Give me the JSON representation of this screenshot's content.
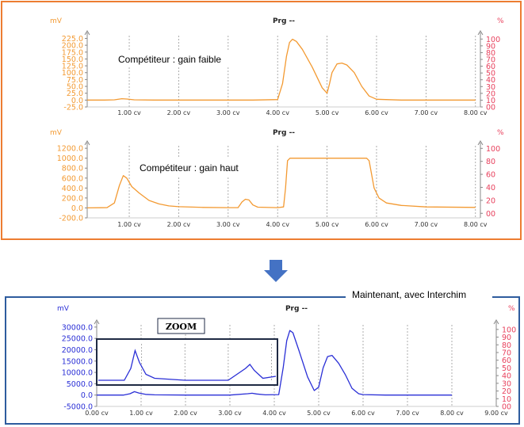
{
  "colors": {
    "orange": "#F39A32",
    "orange_frame": "#ED7D31",
    "blue": "#2A2FD6",
    "blue_frame": "#2E5C9E",
    "pct": "#E8415D",
    "grid": "#999999",
    "arrow": "#4472C4",
    "zoom_box": "#1F2A44"
  },
  "annotations": {
    "gain_low": "Compétiteur : gain faible",
    "gain_high": "Compétiteur : gain haut",
    "interchim": "Maintenant, avec Interchim",
    "zoom": "ZOOM"
  },
  "chart_data": [
    {
      "type": "line",
      "title": "Prg --",
      "ylabel": "mV",
      "y2label": "%",
      "x_unit": "cv",
      "xlim": [
        0.15,
        8.1
      ],
      "ylim": [
        -25,
        235
      ],
      "y2lim": [
        0,
        105
      ],
      "yticks": [
        "-25.0",
        "0.0",
        "25.0",
        "50.0",
        "75.0",
        "100.0",
        "125.0",
        "150.0",
        "175.0",
        "200.0",
        "225.0"
      ],
      "y2ticks": [
        "00",
        "10",
        "20",
        "30",
        "40",
        "50",
        "60",
        "70",
        "80",
        "90",
        "100"
      ],
      "xticks": [
        "1.00 cv",
        "2.00 cv",
        "3.00 cv",
        "4.00 cv",
        "5.00 cv",
        "6.00 cv",
        "7.00 cv",
        "8.00 cv"
      ],
      "series": [
        {
          "color": "orange",
          "x": [
            0.15,
            0.5,
            0.7,
            0.85,
            0.95,
            1.1,
            1.5,
            2.0,
            2.5,
            3.0,
            3.5,
            4.0,
            4.1,
            4.18,
            4.24,
            4.3,
            4.38,
            4.5,
            4.7,
            4.9,
            5.0,
            5.05,
            5.1,
            5.2,
            5.3,
            5.4,
            5.55,
            5.7,
            5.85,
            6.0,
            6.5,
            7.0,
            8.0
          ],
          "y": [
            0,
            0,
            1,
            5,
            4,
            1,
            0,
            0,
            0,
            0,
            0,
            2,
            60,
            160,
            210,
            222,
            214,
            185,
            120,
            45,
            25,
            60,
            100,
            132,
            135,
            128,
            100,
            50,
            15,
            3,
            0,
            0,
            0
          ]
        }
      ]
    },
    {
      "type": "line",
      "title": "Prg --",
      "ylabel": "mV",
      "y2label": "%",
      "x_unit": "cv",
      "xlim": [
        0.15,
        8.1
      ],
      "ylim": [
        -200,
        1250
      ],
      "y2lim": [
        -7,
        104
      ],
      "yticks": [
        "-200.0",
        "0.0",
        "200.0",
        "400.0",
        "600.0",
        "800.0",
        "1000.0",
        "1200.0"
      ],
      "y2ticks": [
        "00",
        "20",
        "40",
        "60",
        "80",
        "100"
      ],
      "xticks": [
        "1.00 cv",
        "2.00 cv",
        "3.00 cv",
        "4.00 cv",
        "5.00 cv",
        "6.00 cv",
        "7.00 cv",
        "8.00 cv"
      ],
      "series": [
        {
          "color": "orange",
          "x": [
            0.15,
            0.55,
            0.7,
            0.8,
            0.88,
            0.95,
            1.05,
            1.2,
            1.4,
            1.6,
            1.8,
            2.0,
            2.5,
            3.0,
            3.2,
            3.28,
            3.35,
            3.42,
            3.5,
            3.6,
            4.0,
            4.12,
            4.16,
            4.2,
            4.25,
            5.8,
            5.85,
            5.95,
            6.05,
            6.2,
            6.5,
            7.0,
            8.0
          ],
          "y": [
            0,
            5,
            100,
            450,
            650,
            600,
            430,
            300,
            150,
            80,
            40,
            25,
            10,
            5,
            5,
            120,
            175,
            160,
            60,
            15,
            5,
            20,
            400,
            950,
            1000,
            1000,
            950,
            400,
            200,
            100,
            50,
            20,
            10
          ]
        }
      ]
    },
    {
      "type": "line",
      "title": "Prg --",
      "ylabel": "mV",
      "y2label": "%",
      "x_unit": "cv",
      "xlim": [
        0,
        9
      ],
      "ylim": [
        -5000,
        31000
      ],
      "y2lim": [
        0,
        106
      ],
      "yticks": [
        "-5000.0",
        "0.0",
        "5000.0",
        "10000.0",
        "15000.0",
        "20000.0",
        "25000.0",
        "30000.0"
      ],
      "y2ticks": [
        "00",
        "10",
        "20",
        "30",
        "40",
        "50",
        "60",
        "70",
        "80",
        "90",
        "100"
      ],
      "xticks": [
        "0.00 cv",
        "1.00 cv",
        "2.00 cv",
        "3.00 cv",
        "4.00 cv",
        "5.00 cv",
        "6.00 cv",
        "7.00 cv",
        "8.00 cv",
        "9.00 cv"
      ],
      "series": [
        {
          "color": "blue",
          "x": [
            0,
            0.6,
            0.75,
            0.85,
            0.95,
            1.1,
            1.3,
            2.0,
            3.0,
            3.4,
            3.5,
            3.6,
            3.8,
            4.1,
            4.2,
            4.28,
            4.35,
            4.42,
            4.55,
            4.75,
            4.9,
            5.0,
            5.1,
            5.2,
            5.3,
            5.45,
            5.6,
            5.75,
            5.9,
            6.0,
            6.5,
            7.0,
            8.0
          ],
          "y": [
            0,
            0,
            600,
            1500,
            900,
            300,
            100,
            0,
            0,
            600,
            800,
            500,
            100,
            200,
            12000,
            24000,
            28500,
            27500,
            20000,
            8000,
            2000,
            3500,
            12000,
            17000,
            17500,
            14000,
            9000,
            3000,
            600,
            200,
            0,
            0,
            0
          ]
        }
      ]
    }
  ]
}
